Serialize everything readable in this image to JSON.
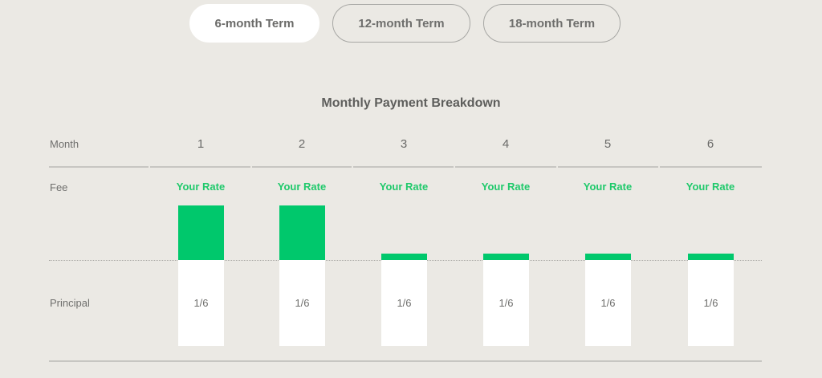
{
  "terms": [
    {
      "label": "6-month Term",
      "active": true
    },
    {
      "label": "12-month Term",
      "active": false
    },
    {
      "label": "18-month Term",
      "active": false
    }
  ],
  "breakdown": {
    "title": "Monthly Payment Breakdown",
    "row_labels": {
      "month": "Month",
      "fee": "Fee",
      "principal": "Principal"
    },
    "fee_label": "Your Rate",
    "months": [
      {
        "month": "1",
        "principal": "1/6",
        "fee_level": "high"
      },
      {
        "month": "2",
        "principal": "1/6",
        "fee_level": "high"
      },
      {
        "month": "3",
        "principal": "1/6",
        "fee_level": "low"
      },
      {
        "month": "4",
        "principal": "1/6",
        "fee_level": "low"
      },
      {
        "month": "5",
        "principal": "1/6",
        "fee_level": "low"
      },
      {
        "month": "6",
        "principal": "1/6",
        "fee_level": "low"
      }
    ]
  },
  "colors": {
    "background": "#ebe9e4",
    "accent": "#00c86c",
    "principal": "#ffffff"
  }
}
